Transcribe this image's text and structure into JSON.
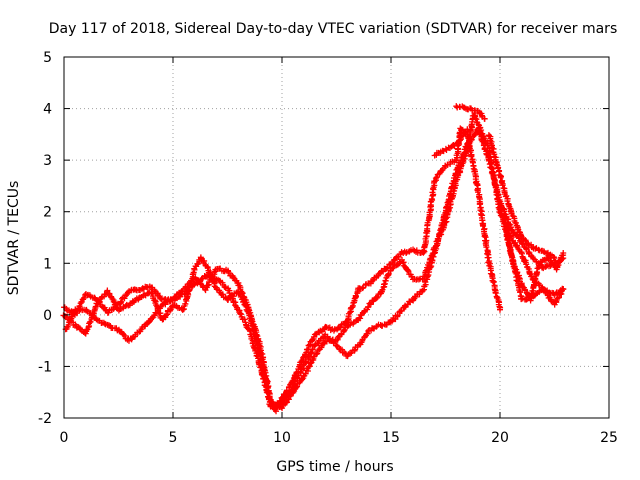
{
  "chart_data": {
    "type": "scatter",
    "title": "Day 117 of 2018, Sidereal Day-to-day VTEC variation (SDTVAR) for receiver mars",
    "xlabel": "GPS time / hours",
    "ylabel": "SDTVAR / TECUs",
    "xlim": [
      0,
      25
    ],
    "ylim": [
      -2,
      5
    ],
    "xticks": [
      0,
      5,
      10,
      15,
      20,
      25
    ],
    "yticks": [
      -2,
      -1,
      0,
      1,
      2,
      3,
      4,
      5
    ],
    "grid": true,
    "marker": "+",
    "series": [
      {
        "name": "SDTVAR",
        "color": "#ff0000",
        "tracks": [
          [
            [
              0.0,
              0.15
            ],
            [
              0.5,
              0.0
            ],
            [
              1.0,
              0.4
            ],
            [
              1.5,
              0.3
            ],
            [
              2.0,
              0.05
            ],
            [
              2.5,
              0.2
            ],
            [
              3.0,
              0.45
            ],
            [
              3.5,
              0.5
            ],
            [
              4.0,
              0.55
            ],
            [
              4.5,
              0.3
            ],
            [
              5.0,
              0.3
            ],
            [
              5.5,
              0.5
            ],
            [
              6.0,
              0.7
            ],
            [
              6.5,
              0.5
            ],
            [
              7.0,
              0.9
            ],
            [
              7.5,
              0.85
            ],
            [
              8.0,
              0.6
            ],
            [
              8.5,
              0.1
            ],
            [
              9.0,
              -0.6
            ],
            [
              9.5,
              -1.7
            ],
            [
              9.7,
              -1.85
            ],
            [
              10.0,
              -1.6
            ],
            [
              10.5,
              -1.3
            ],
            [
              11.0,
              -0.8
            ],
            [
              11.5,
              -0.4
            ],
            [
              12.0,
              -0.25
            ],
            [
              12.5,
              -0.3
            ],
            [
              13.0,
              -0.1
            ],
            [
              13.5,
              0.5
            ],
            [
              14.0,
              0.6
            ],
            [
              14.5,
              0.8
            ],
            [
              15.0,
              1.0
            ],
            [
              15.5,
              1.2
            ],
            [
              16.0,
              1.25
            ],
            [
              16.5,
              1.2
            ],
            [
              17.0,
              2.6
            ],
            [
              17.5,
              2.9
            ],
            [
              18.0,
              3.0
            ],
            [
              18.2,
              3.6
            ],
            [
              18.5,
              3.5
            ],
            [
              19.0,
              2.4
            ],
            [
              19.5,
              1.0
            ],
            [
              20.0,
              0.1
            ]
          ],
          [
            [
              0.1,
              -0.3
            ],
            [
              0.5,
              0.1
            ],
            [
              1.0,
              0.1
            ],
            [
              1.5,
              -0.1
            ],
            [
              2.0,
              -0.2
            ],
            [
              2.5,
              -0.3
            ],
            [
              3.0,
              -0.5
            ],
            [
              3.5,
              -0.3
            ],
            [
              4.0,
              -0.1
            ],
            [
              4.5,
              0.2
            ],
            [
              5.0,
              0.3
            ],
            [
              5.5,
              0.4
            ],
            [
              6.0,
              0.6
            ],
            [
              6.5,
              0.75
            ],
            [
              7.0,
              0.7
            ],
            [
              7.5,
              0.5
            ],
            [
              8.0,
              0.1
            ],
            [
              8.5,
              -0.3
            ],
            [
              9.0,
              -1.0
            ],
            [
              9.5,
              -1.8
            ],
            [
              10.0,
              -1.7
            ],
            [
              10.5,
              -1.4
            ],
            [
              11.0,
              -1.0
            ],
            [
              11.5,
              -0.6
            ],
            [
              12.0,
              -0.4
            ],
            [
              12.5,
              -0.6
            ],
            [
              13.0,
              -0.8
            ],
            [
              13.5,
              -0.6
            ],
            [
              14.0,
              -0.3
            ],
            [
              14.5,
              -0.2
            ],
            [
              15.0,
              -0.15
            ],
            [
              15.5,
              0.1
            ],
            [
              16.0,
              0.3
            ],
            [
              16.5,
              0.5
            ],
            [
              17.0,
              1.2
            ],
            [
              17.5,
              2.0
            ],
            [
              18.0,
              2.8
            ],
            [
              18.5,
              3.3
            ],
            [
              19.0,
              3.6
            ],
            [
              19.5,
              3.0
            ],
            [
              20.0,
              2.2
            ],
            [
              20.5,
              1.7
            ],
            [
              21.0,
              1.4
            ],
            [
              21.5,
              1.1
            ],
            [
              22.0,
              0.9
            ],
            [
              22.5,
              1.0
            ],
            [
              22.9,
              1.1
            ]
          ],
          [
            [
              0.0,
              0.0
            ],
            [
              0.5,
              -0.2
            ],
            [
              1.0,
              -0.35
            ],
            [
              1.5,
              0.2
            ],
            [
              2.0,
              0.45
            ],
            [
              2.5,
              0.1
            ],
            [
              3.0,
              0.2
            ],
            [
              3.5,
              0.35
            ],
            [
              4.0,
              0.45
            ],
            [
              4.5,
              -0.1
            ],
            [
              5.0,
              0.2
            ],
            [
              5.5,
              0.1
            ],
            [
              6.0,
              0.9
            ],
            [
              6.3,
              1.1
            ],
            [
              6.6,
              0.9
            ],
            [
              7.0,
              0.5
            ],
            [
              7.5,
              0.3
            ],
            [
              8.0,
              0.45
            ],
            [
              8.5,
              0.0
            ],
            [
              9.0,
              -0.8
            ],
            [
              9.5,
              -1.7
            ],
            [
              10.0,
              -1.8
            ],
            [
              10.5,
              -1.5
            ],
            [
              11.0,
              -1.2
            ],
            [
              11.5,
              -0.8
            ],
            [
              12.0,
              -0.5
            ],
            [
              12.5,
              -0.5
            ],
            [
              13.0,
              -0.2
            ],
            [
              13.5,
              -0.1
            ],
            [
              14.0,
              0.2
            ],
            [
              14.5,
              0.4
            ],
            [
              15.0,
              0.9
            ],
            [
              15.5,
              1.05
            ],
            [
              16.0,
              0.7
            ],
            [
              16.5,
              0.7
            ],
            [
              17.0,
              1.3
            ],
            [
              17.5,
              1.8
            ],
            [
              18.0,
              2.6
            ],
            [
              18.5,
              3.2
            ],
            [
              18.8,
              3.9
            ],
            [
              19.0,
              3.7
            ],
            [
              19.5,
              3.2
            ],
            [
              20.0,
              2.0
            ],
            [
              20.5,
              1.5
            ],
            [
              21.0,
              1.2
            ],
            [
              21.5,
              0.7
            ],
            [
              22.0,
              0.5
            ],
            [
              22.5,
              0.4
            ],
            [
              22.9,
              0.5
            ]
          ],
          [
            [
              17.0,
              3.1
            ],
            [
              17.5,
              3.2
            ],
            [
              18.0,
              3.3
            ],
            [
              18.5,
              3.6
            ]
          ],
          [
            [
              18.0,
              4.05
            ],
            [
              18.5,
              4.0
            ],
            [
              19.0,
              3.95
            ],
            [
              19.3,
              3.8
            ]
          ],
          [
            [
              20.0,
              2.1
            ],
            [
              20.5,
              1.2
            ],
            [
              21.0,
              0.3
            ],
            [
              21.5,
              0.35
            ],
            [
              22.0,
              0.5
            ],
            [
              22.5,
              0.2
            ],
            [
              22.9,
              0.5
            ]
          ],
          [
            [
              20.2,
              1.9
            ],
            [
              20.6,
              1.0
            ],
            [
              21.0,
              0.6
            ],
            [
              21.4,
              0.3
            ],
            [
              21.8,
              1.0
            ],
            [
              22.2,
              1.1
            ],
            [
              22.6,
              0.9
            ],
            [
              22.9,
              1.2
            ]
          ],
          [
            [
              19.5,
              3.5
            ],
            [
              20.0,
              2.7
            ],
            [
              20.5,
              2.0
            ],
            [
              21.0,
              1.5
            ],
            [
              21.5,
              1.3
            ],
            [
              22.0,
              1.25
            ],
            [
              22.5,
              1.1
            ]
          ]
        ]
      }
    ]
  }
}
